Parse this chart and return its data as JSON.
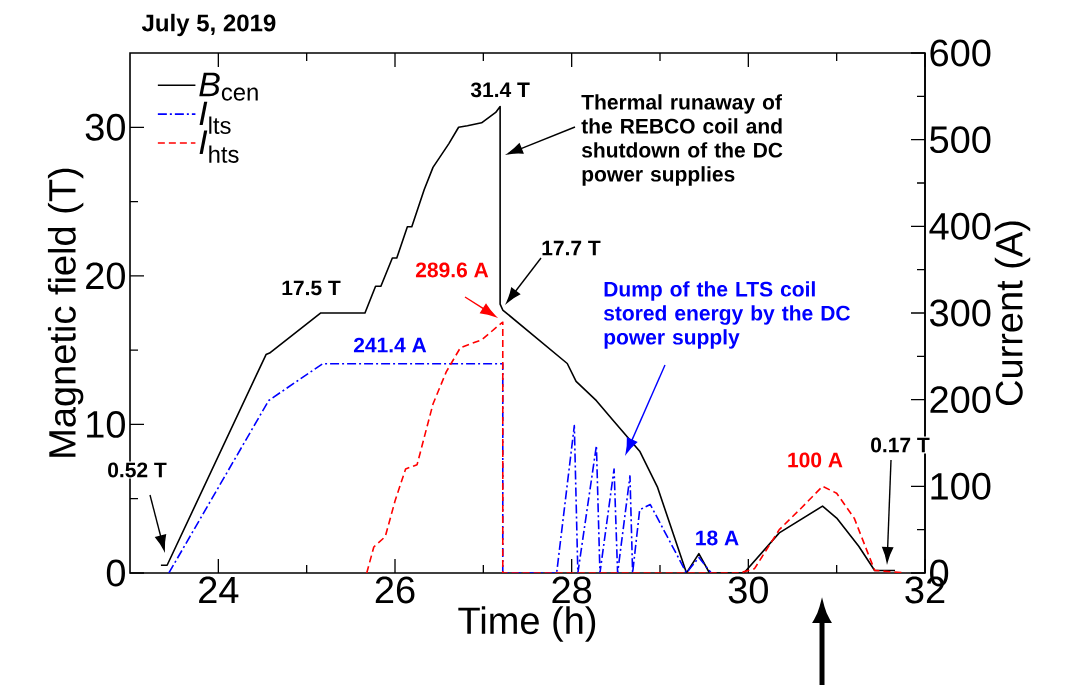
{
  "chart_data": {
    "type": "line",
    "title": "July 5, 2019",
    "xlabel": "Time (h)",
    "ylabel": "Magnetic field (T)",
    "y2label": "Current (A)",
    "xlim": [
      23,
      32
    ],
    "xticks": [
      24,
      26,
      28,
      30,
      32
    ],
    "ylim": [
      0,
      35
    ],
    "yticks": [
      0,
      10,
      20,
      30
    ],
    "y2lim": [
      0,
      600
    ],
    "y2ticks": [
      0,
      100,
      200,
      300,
      400,
      500,
      600
    ],
    "grid": false,
    "legend": "top left",
    "marker": "none",
    "series": [
      {
        "name": "*B*$_{cen}$",
        "color": "#000000",
        "line_style": "solid",
        "x": [
          23.35,
          23.42,
          24.54,
          24.58,
          25.16,
          25.66,
          25.78,
          25.84,
          25.97,
          26.02,
          26.14,
          26.19,
          26.33,
          26.43,
          26.61,
          26.72,
          26.82,
          26.98,
          27.14,
          27.19,
          27.19,
          27.22,
          27.95,
          28.05,
          28.28,
          28.48,
          28.77,
          28.97,
          29.3,
          29.44,
          29.56,
          29.95,
          30.35,
          30.84,
          31.0,
          31.25,
          31.43,
          31.66
        ],
        "values": [
          0.52,
          0.52,
          14.7,
          14.8,
          17.5,
          17.5,
          19.3,
          19.3,
          21.2,
          21.2,
          23.3,
          23.3,
          25.8,
          27.3,
          28.9,
          30.0,
          30.1,
          30.3,
          31.0,
          31.4,
          18.1,
          17.7,
          14.1,
          12.9,
          11.6,
          10.2,
          8.2,
          5.8,
          0,
          1.3,
          0,
          0,
          2.7,
          4.5,
          3.7,
          1.8,
          0.17,
          0.17
        ]
      },
      {
        "name": "*I*$_{lts}$",
        "color": "#0000ff",
        "line_style": "dashdot",
        "axis": "y2",
        "x": [
          23.44,
          24.57,
          25.18,
          27.22,
          27.22,
          27.83,
          28.03,
          28.07,
          28.28,
          28.32,
          28.48,
          28.52,
          28.66,
          28.69,
          28.77,
          28.89,
          29.3,
          29.44,
          29.58
        ],
        "values": [
          0,
          199,
          241.4,
          241.4,
          0,
          0,
          170,
          0,
          147,
          0,
          120,
          0,
          112,
          0,
          73,
          79,
          0,
          18,
          0
        ]
      },
      {
        "name": "*I*$_{hts}$",
        "color": "#ff0000",
        "line_style": "dashed",
        "axis": "y2",
        "x": [
          25.68,
          25.76,
          25.89,
          26.0,
          26.12,
          26.25,
          26.43,
          26.58,
          26.74,
          26.98,
          27.22,
          27.22,
          29.9,
          30.07,
          30.35,
          30.6,
          30.84,
          31.0,
          31.2,
          31.43,
          31.78
        ],
        "values": [
          0,
          30,
          42,
          83,
          120,
          125,
          195,
          232,
          260,
          269,
          289.6,
          0,
          0,
          5,
          50,
          75,
          100,
          92,
          63,
          3,
          0
        ]
      }
    ],
    "annotations": [
      {
        "text": "31.4 T",
        "x": 27.19,
        "y": 31.4
      },
      "Thermal runaway of the REBCO coil and shutdown of the DC power supplies",
      "17.7 T",
      {
        "text": "17.5 T",
        "x": 25.4,
        "y": 17.5
      },
      "289.6 A",
      "241.4 A",
      "0.52 T",
      "Dump of the LTS coil stored energy by the DC power supply",
      "18 A",
      "100 A",
      "0.17 T"
    ]
  }
}
